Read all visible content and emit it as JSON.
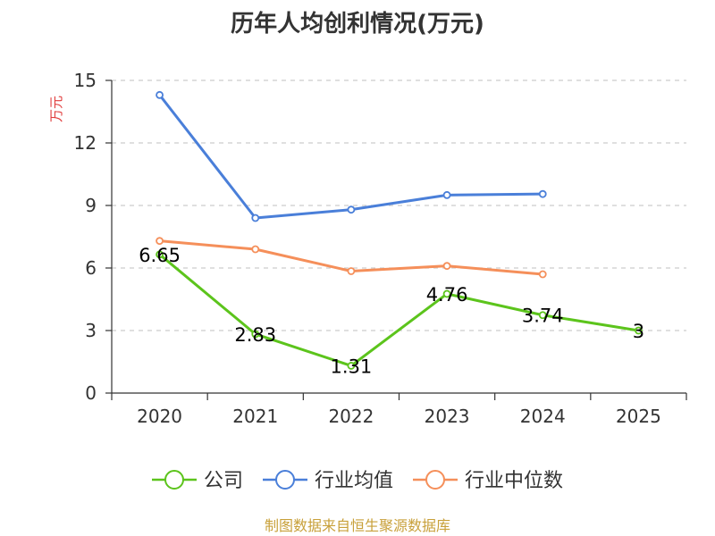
{
  "chart_data": {
    "type": "line",
    "title": "历年人均创利情况(万元)",
    "ylabel": "万元",
    "ylim": [
      0,
      15
    ],
    "yticks": [
      0,
      3,
      6,
      9,
      12,
      15
    ],
    "categories": [
      "2020",
      "2021",
      "2022",
      "2023",
      "2024",
      "2025"
    ],
    "grid": true,
    "legend_position": "bottom",
    "series": [
      {
        "name": "公司",
        "color": "#5cc41c",
        "values": [
          6.65,
          2.83,
          1.31,
          4.76,
          3.74,
          3
        ],
        "labels": [
          "6.65",
          "2.83",
          "1.31",
          "4.76",
          "3.74",
          "3"
        ]
      },
      {
        "name": "行业均值",
        "color": "#4a7fd9",
        "values": [
          14.3,
          8.4,
          8.8,
          9.5,
          9.55,
          null
        ]
      },
      {
        "name": "行业中位数",
        "color": "#f58f5a",
        "values": [
          7.3,
          6.9,
          5.85,
          6.1,
          5.7,
          null
        ]
      }
    ],
    "source": "制图数据来自恒生聚源数据库"
  },
  "colors": {
    "ylabel": "#e03c3c",
    "source": "#c8a03a",
    "grid": "#cccccc",
    "axis": "#333333"
  }
}
